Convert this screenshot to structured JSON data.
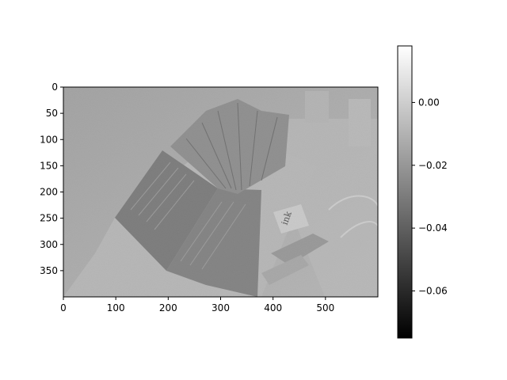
{
  "chart_data": {
    "type": "heatmap",
    "title": "",
    "xlabel": "",
    "ylabel": "",
    "colormap": "gray",
    "image_shape": [
      400,
      600
    ],
    "xlim": [
      0,
      600
    ],
    "ylim": [
      400,
      0
    ],
    "xticks": [
      0,
      100,
      200,
      300,
      400,
      500
    ],
    "yticks": [
      0,
      50,
      100,
      150,
      200,
      250,
      300,
      350
    ],
    "colorbar": {
      "range": [
        -0.075,
        0.018
      ],
      "ticks": [
        0.0,
        -0.02,
        -0.04,
        -0.06
      ],
      "tick_labels": [
        "0.00",
        "−0.02",
        "−0.04",
        "−0.06"
      ],
      "min_color": "#000000",
      "max_color": "#ffffff"
    },
    "image_content": "grayscale image of an open book lying on a desk, with a small box labeled ink, a stapler and cables",
    "image_text": "ink"
  }
}
